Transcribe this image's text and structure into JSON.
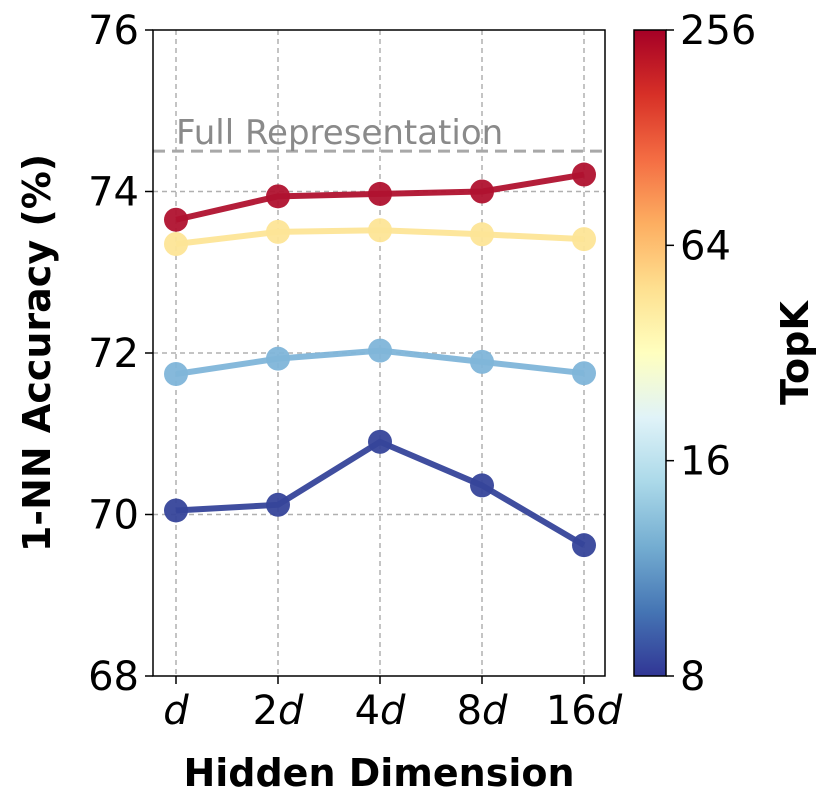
{
  "chart_data": {
    "type": "line",
    "xlabel": "Hidden Dimension",
    "ylabel": "1-NN Accuracy (%)",
    "categories": [
      "d",
      "2d",
      "4d",
      "8d",
      "16d"
    ],
    "ylim": [
      68,
      76
    ],
    "yticks": [
      68,
      70,
      72,
      74,
      76
    ],
    "grid": true,
    "reference_line": {
      "label": "Full Representation",
      "value": 74.5
    },
    "colorbar": {
      "label": "TopK",
      "ticks": [
        "8",
        "16",
        "64",
        "256"
      ],
      "colormap": [
        "#313695",
        "#4575b4",
        "#74add1",
        "#abd9e9",
        "#e0f3f8",
        "#ffffbf",
        "#fee090",
        "#fdae61",
        "#f46d43",
        "#d73027",
        "#a50026"
      ]
    },
    "series": [
      {
        "topk": 8,
        "color": "#36449a",
        "values": [
          70.05,
          70.12,
          70.9,
          70.36,
          69.62
        ]
      },
      {
        "topk": 16,
        "color": "#7fb5d9",
        "values": [
          71.74,
          71.93,
          72.03,
          71.89,
          71.75
        ]
      },
      {
        "topk": 64,
        "color": "#fde597",
        "values": [
          73.35,
          73.5,
          73.52,
          73.47,
          73.41
        ]
      },
      {
        "topk": 256,
        "color": "#b0122f",
        "values": [
          73.65,
          73.94,
          73.97,
          74.0,
          74.21
        ]
      }
    ]
  }
}
